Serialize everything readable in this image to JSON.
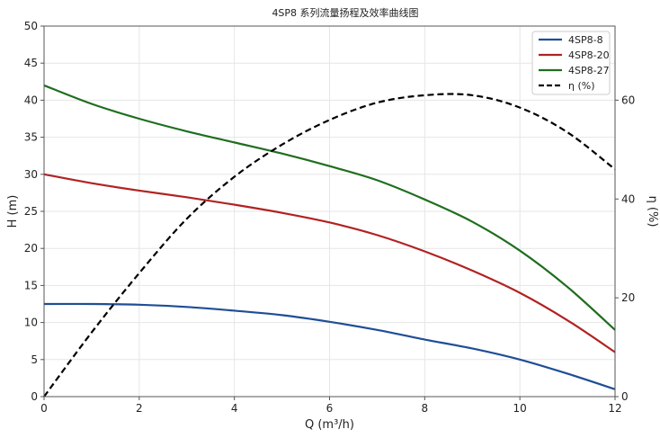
{
  "chart_data": {
    "type": "line",
    "title": "4SP8 系列流量扬程及效率曲线图",
    "xlabel": "Q (m³/h)",
    "ylabel": "H (m)",
    "ylabel_right": "η (%)",
    "xlim": [
      0,
      12
    ],
    "ylim": [
      0,
      50
    ],
    "ylim_right": [
      0,
      75
    ],
    "xticks": [
      0,
      2,
      4,
      6,
      8,
      10,
      12
    ],
    "yticks": [
      0,
      5,
      10,
      15,
      20,
      25,
      30,
      35,
      40,
      45,
      50
    ],
    "yticks_right": [
      0,
      20,
      40,
      60
    ],
    "grid": true,
    "legend_position": "top-right",
    "x": [
      0,
      1,
      2,
      3,
      4,
      5,
      6,
      7,
      8,
      9,
      10,
      11,
      12
    ],
    "series": [
      {
        "name": "4SP8-8",
        "axis": "left",
        "color": "#1f4e96",
        "style": "solid",
        "values": [
          12.5,
          12.5,
          12.4,
          12.1,
          11.6,
          11.0,
          10.1,
          9.0,
          7.7,
          6.5,
          5.0,
          3.1,
          1.0
        ]
      },
      {
        "name": "4SP8-20",
        "axis": "left",
        "color": "#b22222",
        "style": "solid",
        "values": [
          30.0,
          28.8,
          27.8,
          26.9,
          25.9,
          24.8,
          23.5,
          21.8,
          19.6,
          17.0,
          14.0,
          10.3,
          6.0
        ]
      },
      {
        "name": "4SP8-27",
        "axis": "left",
        "color": "#1f6e1f",
        "style": "solid",
        "values": [
          42.0,
          39.5,
          37.5,
          35.8,
          34.3,
          32.8,
          31.1,
          29.2,
          26.6,
          23.6,
          19.7,
          14.8,
          9.0
        ]
      },
      {
        "name": "η (%)",
        "axis": "right",
        "color": "#000000",
        "style": "dashed",
        "values": [
          0,
          13,
          25,
          36,
          44.5,
          51,
          56,
          59.5,
          61,
          61,
          58.5,
          53.5,
          46
        ]
      }
    ]
  }
}
